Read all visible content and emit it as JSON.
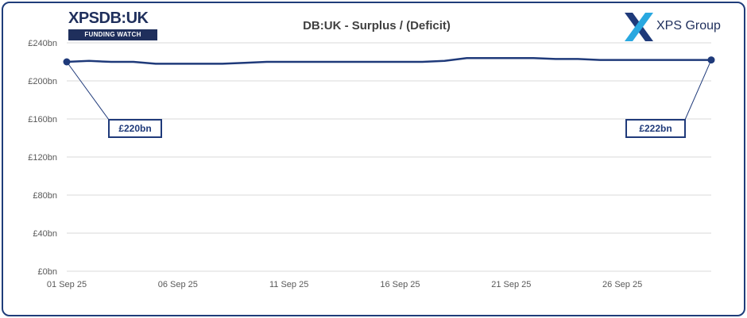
{
  "header": {
    "title": "DB:UK - Surplus / (Deficit)",
    "logo_left_text": "XPSDB:UK",
    "logo_left_tag": "FUNDING WATCH",
    "logo_right_text": "XPS Group"
  },
  "colors": {
    "line": "#1f3a7a",
    "border": "#1f3d7a",
    "grid": "#d9d9d9",
    "axis_text": "#595959",
    "brand_light": "#29a8e0"
  },
  "chart_data": {
    "type": "line",
    "title": "DB:UK - Surplus / (Deficit)",
    "xlabel": "",
    "ylabel": "",
    "grid": true,
    "ylim": [
      0,
      240
    ],
    "y_ticks": [
      0,
      40,
      80,
      120,
      160,
      200,
      240
    ],
    "y_tick_labels": [
      "£0bn",
      "£40bn",
      "£80bn",
      "£120bn",
      "£160bn",
      "£200bn",
      "£240bn"
    ],
    "x_ticks": [
      "01 Sep 25",
      "06 Sep 25",
      "11 Sep 25",
      "16 Sep 25",
      "21 Sep 25",
      "26 Sep 25"
    ],
    "series": [
      {
        "x": [
          "01 Sep 25",
          "02 Sep 25",
          "03 Sep 25",
          "04 Sep 25",
          "05 Sep 25",
          "08 Sep 25",
          "09 Sep 25",
          "10 Sep 25",
          "11 Sep 25",
          "12 Sep 25",
          "15 Sep 25",
          "16 Sep 25",
          "17 Sep 25",
          "18 Sep 25",
          "19 Sep 25",
          "22 Sep 25",
          "23 Sep 25",
          "24 Sep 25",
          "25 Sep 25",
          "26 Sep 25",
          "29 Sep 25",
          "30 Sep 25"
        ],
        "values": [
          220,
          221,
          220,
          220,
          218,
          218,
          219,
          220,
          220,
          220,
          220,
          220,
          220,
          221,
          224,
          224,
          223,
          223,
          222,
          222,
          222,
          222
        ]
      }
    ],
    "annotations": [
      {
        "text": "£220bn",
        "x": "01 Sep 25",
        "value": 220
      },
      {
        "text": "£222bn",
        "x": "30 Sep 25",
        "value": 222
      }
    ]
  }
}
